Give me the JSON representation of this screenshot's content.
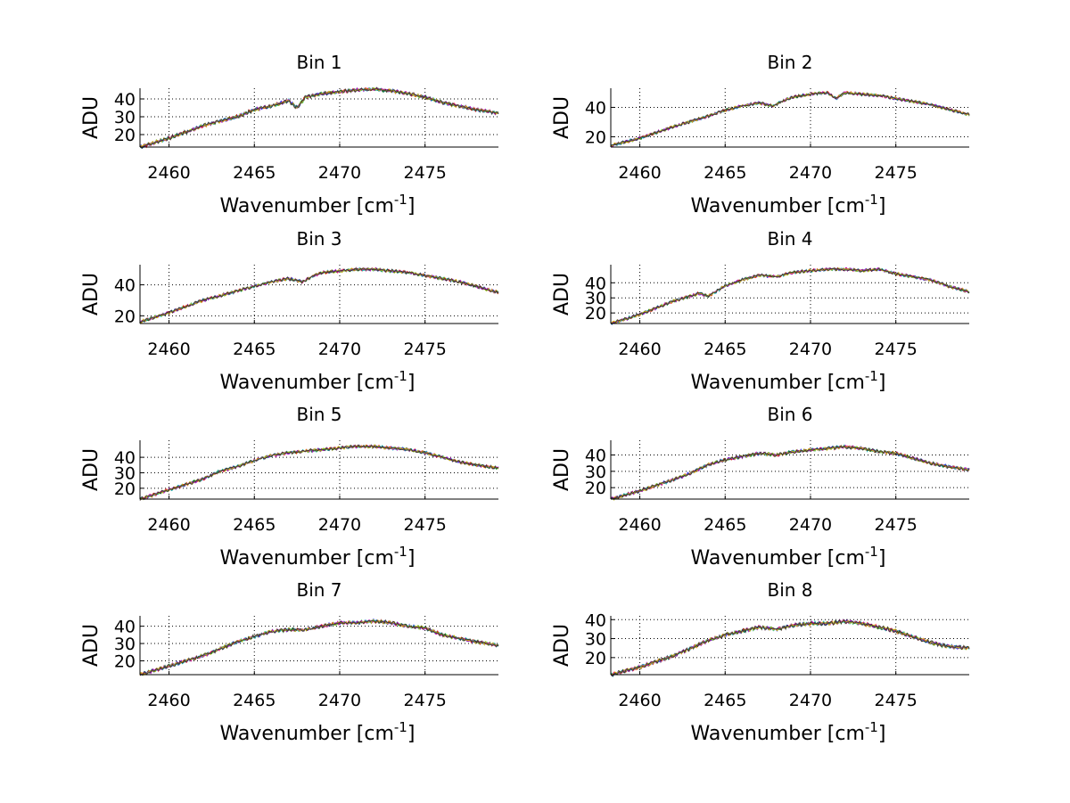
{
  "figure": {
    "background": "#ffffff",
    "line_colors": [
      "#0000ff",
      "#00a000",
      "#ff0000",
      "#00bfbf",
      "#bf00bf",
      "#bfbf00",
      "#303030"
    ]
  },
  "chart_data": [
    {
      "type": "line",
      "title": "Bin 1",
      "xlabel": "Wavenumber [cm",
      "xlabel_sup": "-1",
      "xlabel_end": "]",
      "ylabel": "ADU",
      "xlim": [
        2458.3,
        2479.3
      ],
      "ylim": [
        13,
        46
      ],
      "xticks": [
        2460,
        2465,
        2470,
        2475
      ],
      "yticks": [
        20,
        30,
        40
      ],
      "grid": true,
      "series_count": 7,
      "profile": {
        "x": [
          2458.3,
          2460,
          2462,
          2464,
          2465,
          2466,
          2467,
          2467.5,
          2468,
          2469,
          2470,
          2471,
          2472,
          2473,
          2474,
          2475,
          2476,
          2477,
          2478,
          2479.3
        ],
        "y": [
          13,
          18,
          25,
          30,
          34,
          36,
          39,
          35,
          41,
          43,
          44,
          45,
          45.5,
          44.5,
          43,
          41,
          38,
          36,
          34,
          32
        ]
      }
    },
    {
      "type": "line",
      "title": "Bin 2",
      "xlabel": "Wavenumber [cm",
      "xlabel_sup": "-1",
      "xlabel_end": "]",
      "ylabel": "ADU",
      "xlim": [
        2458.3,
        2479.3
      ],
      "ylim": [
        13,
        53
      ],
      "xticks": [
        2460,
        2465,
        2470,
        2475
      ],
      "yticks": [
        20,
        40
      ],
      "grid": true,
      "series_count": 7,
      "profile": {
        "x": [
          2458.3,
          2460,
          2462,
          2464,
          2465,
          2466,
          2467,
          2467.8,
          2468.5,
          2469,
          2470,
          2471,
          2471.5,
          2472,
          2473,
          2474,
          2475,
          2476,
          2477,
          2478,
          2479.3
        ],
        "y": [
          14,
          19,
          27,
          34,
          38,
          41,
          43,
          41,
          45,
          47,
          49,
          50,
          46,
          50,
          49,
          48,
          46,
          44,
          42,
          39,
          35
        ]
      }
    },
    {
      "type": "line",
      "title": "Bin 3",
      "xlabel": "Wavenumber [cm",
      "xlabel_sup": "-1",
      "xlabel_end": "]",
      "ylabel": "ADU",
      "xlim": [
        2458.3,
        2479.3
      ],
      "ylim": [
        15,
        53
      ],
      "xticks": [
        2460,
        2465,
        2470,
        2475
      ],
      "yticks": [
        20,
        40
      ],
      "grid": true,
      "series_count": 7,
      "profile": {
        "x": [
          2458.3,
          2460,
          2462,
          2464,
          2465,
          2466,
          2467,
          2467.8,
          2468.5,
          2469,
          2470,
          2471,
          2472,
          2473,
          2474,
          2475,
          2476,
          2477,
          2478,
          2479.3
        ],
        "y": [
          16,
          22,
          30,
          36,
          39,
          42,
          44,
          42,
          46,
          48,
          49,
          50,
          50,
          49,
          48,
          46,
          44,
          42,
          39,
          35
        ]
      }
    },
    {
      "type": "line",
      "title": "Bin 4",
      "xlabel": "Wavenumber [cm",
      "xlabel_sup": "-1",
      "xlabel_end": "]",
      "ylabel": "ADU",
      "xlim": [
        2458.3,
        2479.3
      ],
      "ylim": [
        13,
        52
      ],
      "xticks": [
        2460,
        2465,
        2470,
        2475
      ],
      "yticks": [
        20,
        30,
        40
      ],
      "grid": true,
      "series_count": 7,
      "profile": {
        "x": [
          2458.3,
          2460,
          2462,
          2463.5,
          2464,
          2465,
          2466,
          2467,
          2468,
          2469,
          2470,
          2471,
          2472,
          2473,
          2474,
          2475,
          2476,
          2477,
          2478,
          2479.3
        ],
        "y": [
          13,
          19,
          28,
          33,
          31,
          38,
          42,
          45,
          44,
          47,
          48,
          49,
          49,
          48,
          49,
          46,
          44,
          42,
          38,
          34
        ]
      }
    },
    {
      "type": "line",
      "title": "Bin 5",
      "xlabel": "Wavenumber [cm",
      "xlabel_sup": "-1",
      "xlabel_end": "]",
      "ylabel": "ADU",
      "xlim": [
        2458.3,
        2479.3
      ],
      "ylim": [
        13,
        51
      ],
      "xticks": [
        2460,
        2465,
        2470,
        2475
      ],
      "yticks": [
        20,
        30,
        40
      ],
      "grid": true,
      "series_count": 7,
      "profile": {
        "x": [
          2458.3,
          2460,
          2462,
          2463,
          2464,
          2465,
          2466,
          2467,
          2468,
          2469,
          2470,
          2471,
          2472,
          2473,
          2474,
          2475,
          2476,
          2477,
          2478,
          2479.3
        ],
        "y": [
          13,
          19,
          26,
          31,
          34,
          38,
          41,
          43,
          44,
          45,
          46,
          47,
          47,
          46,
          45,
          43,
          40,
          37,
          35,
          33
        ]
      }
    },
    {
      "type": "line",
      "title": "Bin 6",
      "xlabel": "Wavenumber [cm",
      "xlabel_sup": "-1",
      "xlabel_end": "]",
      "ylabel": "ADU",
      "xlim": [
        2458.3,
        2479.3
      ],
      "ylim": [
        13,
        49
      ],
      "xticks": [
        2460,
        2465,
        2470,
        2475
      ],
      "yticks": [
        20,
        30,
        40
      ],
      "grid": true,
      "series_count": 7,
      "profile": {
        "x": [
          2458.3,
          2460,
          2462,
          2463,
          2464,
          2465,
          2466,
          2467,
          2468,
          2469,
          2470,
          2471,
          2472,
          2473,
          2474,
          2475,
          2476,
          2477,
          2478,
          2479.3
        ],
        "y": [
          13,
          18,
          25,
          29,
          34,
          37,
          39,
          41,
          40,
          42,
          43,
          44,
          45,
          44,
          42,
          41,
          38,
          35,
          33,
          31
        ]
      }
    },
    {
      "type": "line",
      "title": "Bin 7",
      "xlabel": "Wavenumber [cm",
      "xlabel_sup": "-1",
      "xlabel_end": "]",
      "ylabel": "ADU",
      "xlim": [
        2458.3,
        2479.3
      ],
      "ylim": [
        12,
        46
      ],
      "xticks": [
        2460,
        2465,
        2470,
        2475
      ],
      "yticks": [
        20,
        30,
        40
      ],
      "grid": true,
      "series_count": 7,
      "profile": {
        "x": [
          2458.3,
          2460,
          2462,
          2463,
          2464,
          2465,
          2466,
          2467,
          2468,
          2469,
          2470,
          2471,
          2472,
          2473,
          2474,
          2475,
          2476,
          2477,
          2478,
          2479.3
        ],
        "y": [
          12,
          17,
          23,
          27,
          31,
          34,
          37,
          38,
          38,
          40,
          42,
          42,
          43,
          42,
          40,
          39,
          35,
          33,
          31,
          29
        ]
      }
    },
    {
      "type": "line",
      "title": "Bin 8",
      "xlabel": "Wavenumber [cm",
      "xlabel_sup": "-1",
      "xlabel_end": "]",
      "ylabel": "ADU",
      "xlim": [
        2458.3,
        2479.3
      ],
      "ylim": [
        11,
        42
      ],
      "xticks": [
        2460,
        2465,
        2470,
        2475
      ],
      "yticks": [
        20,
        30,
        40
      ],
      "grid": true,
      "series_count": 7,
      "profile": {
        "x": [
          2458.3,
          2460,
          2462,
          2463,
          2464,
          2465,
          2466,
          2467,
          2468,
          2469,
          2470,
          2471,
          2472,
          2473,
          2474,
          2475,
          2476,
          2477,
          2478,
          2479.3
        ],
        "y": [
          11,
          15,
          21,
          25,
          29,
          32,
          34,
          36,
          35,
          37,
          38,
          38,
          39,
          38,
          36,
          34,
          31,
          28,
          26,
          25
        ]
      }
    }
  ]
}
